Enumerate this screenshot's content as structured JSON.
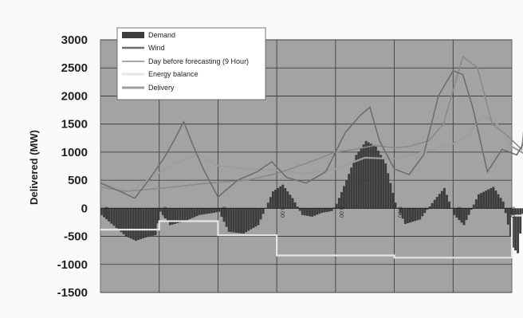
{
  "chart_data": {
    "type": "bar",
    "title": "",
    "xlabel": "",
    "ylabel": "Delivered (MW)",
    "ylim": [
      -1500,
      3000
    ],
    "yticks": [
      3000,
      2500,
      2000,
      1500,
      1000,
      500,
      0,
      -500,
      -1000,
      -1500
    ],
    "grid": true,
    "legend_position": "top-left",
    "x_sections": 7,
    "hours_per_section": 24,
    "colors": {
      "plot_bg": "#a3a3a3",
      "demand": "#3d3d3d",
      "wind": "#6e6e6e",
      "forecast": "#8a8a8a",
      "energy_balance": "#e6e6e6",
      "delivery": "#9e9e9e"
    },
    "zero_labels": [
      "0.00",
      "0.00",
      "0.00",
      "0.00",
      "0.00",
      "0.00",
      "0.00",
      "0.00"
    ],
    "series": [
      {
        "name": "Demand",
        "kind": "bar",
        "points": [
          [
            0,
            -120
          ],
          [
            6,
            -350
          ],
          [
            10,
            -500
          ],
          [
            14,
            -580
          ],
          [
            18,
            -520
          ],
          [
            22,
            -480
          ],
          [
            24,
            -60
          ],
          [
            28,
            -300
          ],
          [
            34,
            -230
          ],
          [
            40,
            -120
          ],
          [
            46,
            -80
          ],
          [
            48,
            -60
          ],
          [
            52,
            -420
          ],
          [
            58,
            -450
          ],
          [
            64,
            -300
          ],
          [
            70,
            300
          ],
          [
            74,
            420
          ],
          [
            78,
            180
          ],
          [
            82,
            -120
          ],
          [
            86,
            -150
          ],
          [
            90,
            -80
          ],
          [
            94,
            -50
          ],
          [
            96,
            80
          ],
          [
            100,
            500
          ],
          [
            104,
            950
          ],
          [
            108,
            1200
          ],
          [
            112,
            1100
          ],
          [
            116,
            800
          ],
          [
            120,
            100
          ],
          [
            124,
            -280
          ],
          [
            130,
            -200
          ],
          [
            136,
            150
          ],
          [
            140,
            360
          ],
          [
            144,
            -120
          ],
          [
            148,
            -300
          ],
          [
            154,
            250
          ],
          [
            160,
            380
          ],
          [
            164,
            120
          ],
          [
            168,
            -700
          ],
          [
            170,
            -800
          ],
          [
            172,
            -100
          ],
          [
            176,
            -240
          ],
          [
            182,
            -330
          ],
          [
            188,
            -200
          ],
          [
            192,
            -80
          ],
          [
            196,
            200
          ],
          [
            200,
            720
          ],
          [
            204,
            350
          ],
          [
            206,
            -150
          ],
          [
            212,
            -300
          ],
          [
            218,
            -120
          ],
          [
            224,
            -180
          ],
          [
            230,
            -300
          ],
          [
            236,
            -120
          ],
          [
            240,
            -200
          ],
          [
            244,
            -130
          ],
          [
            248,
            -80
          ],
          [
            252,
            -60
          ]
        ],
        "step": 4
      },
      {
        "name": "Wind",
        "kind": "line",
        "points": [
          [
            0,
            450
          ],
          [
            8,
            300
          ],
          [
            14,
            180
          ],
          [
            20,
            520
          ],
          [
            26,
            900
          ],
          [
            30,
            1200
          ],
          [
            34,
            1540
          ],
          [
            38,
            1100
          ],
          [
            42,
            700
          ],
          [
            48,
            200
          ],
          [
            56,
            500
          ],
          [
            64,
            650
          ],
          [
            70,
            830
          ],
          [
            76,
            550
          ],
          [
            84,
            450
          ],
          [
            92,
            650
          ],
          [
            100,
            1350
          ],
          [
            106,
            1650
          ],
          [
            110,
            1800
          ],
          [
            114,
            1200
          ],
          [
            120,
            700
          ],
          [
            126,
            600
          ],
          [
            132,
            950
          ],
          [
            138,
            2000
          ],
          [
            144,
            2450
          ],
          [
            148,
            2380
          ],
          [
            152,
            1800
          ],
          [
            158,
            650
          ],
          [
            164,
            1050
          ],
          [
            170,
            950
          ],
          [
            178,
            1550
          ],
          [
            184,
            1250
          ],
          [
            190,
            800
          ],
          [
            196,
            350
          ],
          [
            200,
            500
          ],
          [
            206,
            300
          ],
          [
            212,
            600
          ],
          [
            218,
            1100
          ],
          [
            222,
            1600
          ],
          [
            226,
            1550
          ],
          [
            230,
            1100
          ],
          [
            236,
            600
          ],
          [
            244,
            700
          ]
        ]
      },
      {
        "name": "Day before forecasting (9 Hour)",
        "kind": "line",
        "points": [
          [
            0,
            380
          ],
          [
            10,
            300
          ],
          [
            20,
            340
          ],
          [
            30,
            380
          ],
          [
            40,
            430
          ],
          [
            50,
            470
          ],
          [
            60,
            500
          ],
          [
            72,
            620
          ],
          [
            84,
            800
          ],
          [
            96,
            1000
          ],
          [
            104,
            1050
          ],
          [
            112,
            1120
          ],
          [
            120,
            1080
          ],
          [
            126,
            1100
          ],
          [
            134,
            1200
          ],
          [
            140,
            1500
          ],
          [
            148,
            2700
          ],
          [
            154,
            2500
          ],
          [
            160,
            1500
          ],
          [
            166,
            1300
          ],
          [
            172,
            1050
          ],
          [
            176,
            2600
          ],
          [
            182,
            2720
          ],
          [
            188,
            2300
          ],
          [
            194,
            1500
          ],
          [
            200,
            1100
          ],
          [
            206,
            700
          ],
          [
            212,
            350
          ],
          [
            220,
            250
          ],
          [
            226,
            700
          ],
          [
            232,
            1200
          ],
          [
            238,
            800
          ],
          [
            244,
            650
          ]
        ]
      },
      {
        "name": "Energy balance",
        "kind": "step",
        "points": [
          [
            0,
            -380
          ],
          [
            24,
            -380
          ],
          [
            24,
            -230
          ],
          [
            48,
            -230
          ],
          [
            48,
            -480
          ],
          [
            72,
            -480
          ],
          [
            72,
            -840
          ],
          [
            120,
            -840
          ],
          [
            120,
            -880
          ],
          [
            168,
            -880
          ],
          [
            168,
            -130
          ],
          [
            192,
            -130
          ],
          [
            192,
            -380
          ],
          [
            244,
            -380
          ]
        ]
      },
      {
        "name": "Delivery",
        "kind": "line",
        "points": [
          [
            0,
            440
          ],
          [
            6,
            380
          ],
          [
            12,
            300
          ],
          [
            20,
            520
          ],
          [
            30,
            800
          ],
          [
            40,
            950
          ],
          [
            48,
            760
          ],
          [
            60,
            700
          ],
          [
            72,
            680
          ],
          [
            84,
            620
          ],
          [
            96,
            700
          ],
          [
            108,
            900
          ],
          [
            120,
            880
          ],
          [
            132,
            1000
          ],
          [
            144,
            1150
          ],
          [
            150,
            1300
          ],
          [
            156,
            1650
          ],
          [
            162,
            1500
          ],
          [
            168,
            1100
          ],
          [
            180,
            800
          ],
          [
            192,
            650
          ],
          [
            200,
            550
          ],
          [
            210,
            600
          ],
          [
            220,
            700
          ],
          [
            230,
            900
          ],
          [
            236,
            700
          ],
          [
            244,
            600
          ]
        ]
      }
    ]
  }
}
